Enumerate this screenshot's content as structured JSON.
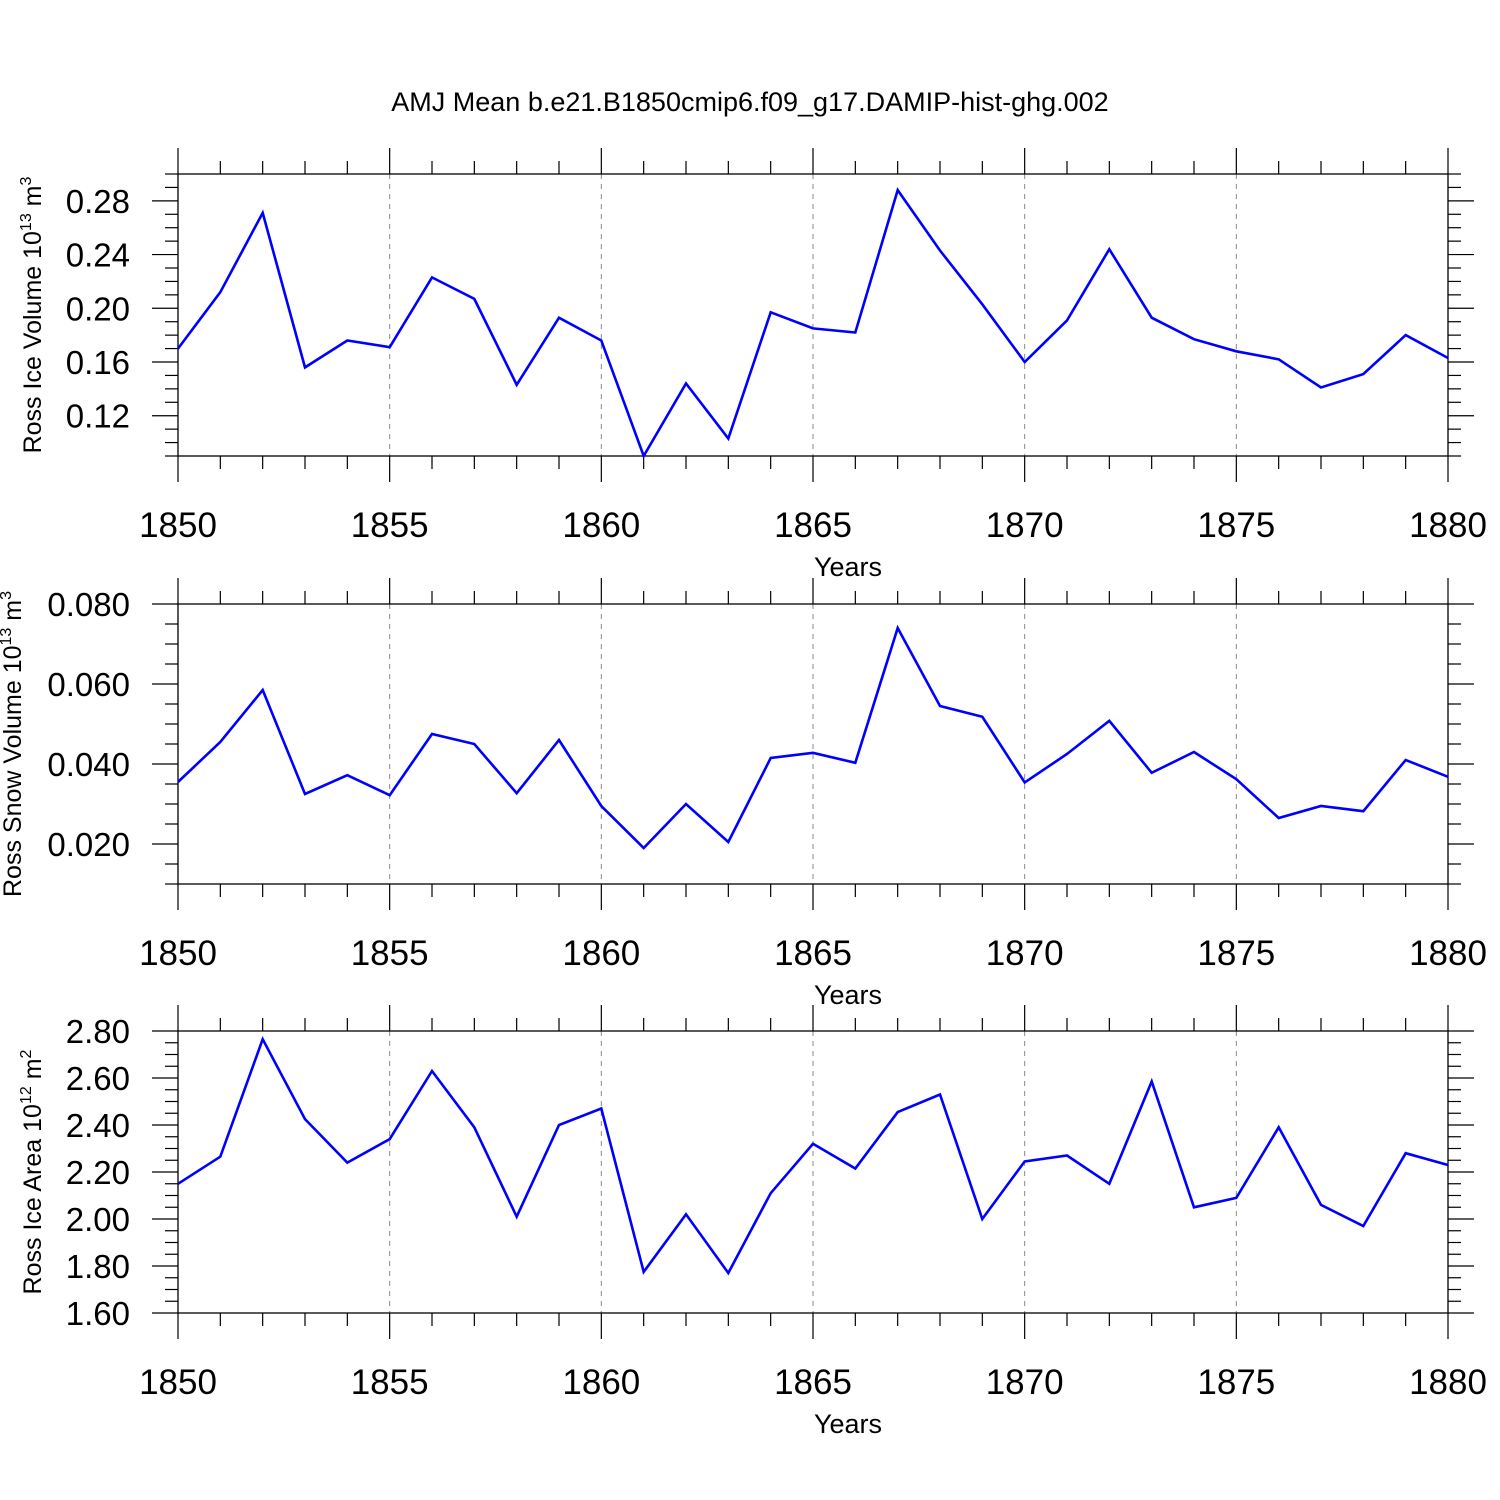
{
  "title": "AMJ Mean b.e21.B1850cmip6.f09_g17.DAMIP-hist-ghg.002",
  "colors": {
    "line": "#0000ff",
    "axis": "#000000",
    "grid": "#888888",
    "background": "#ffffff"
  },
  "chart_data": [
    {
      "type": "line",
      "ylabel": "Ross Ice Volume 10",
      "ylabel_sup": "13",
      "ylabel_unit": "m",
      "ylabel_unit_sup": "3",
      "xlabel": "Years",
      "xlim": [
        1850,
        1880
      ],
      "ylim": [
        0.09,
        0.3
      ],
      "x_ticks": [
        "1850",
        "1855",
        "1860",
        "1865",
        "1870",
        "1875",
        "1880"
      ],
      "y_ticks": [
        "0.12",
        "0.16",
        "0.20",
        "0.24",
        "0.28"
      ],
      "grid": "vertical dashed at major x ticks",
      "series": [
        {
          "x": [
            1850,
            1851,
            1852,
            1853,
            1854,
            1855,
            1856,
            1857,
            1858,
            1859,
            1860,
            1861,
            1862,
            1863,
            1864,
            1865,
            1866,
            1867,
            1868,
            1869,
            1870,
            1871,
            1872,
            1873,
            1874,
            1875,
            1876,
            1877,
            1878,
            1879,
            1880
          ],
          "values": [
            0.17,
            0.212,
            0.271,
            0.156,
            0.176,
            0.171,
            0.223,
            0.207,
            0.143,
            0.193,
            0.176,
            0.09,
            0.144,
            0.103,
            0.197,
            0.185,
            0.182,
            0.288,
            0.243,
            0.203,
            0.16,
            0.191,
            0.244,
            0.193,
            0.177,
            0.168,
            0.162,
            0.141,
            0.151,
            0.18,
            0.163
          ]
        }
      ]
    },
    {
      "type": "line",
      "ylabel": "Ross Snow Volume 10",
      "ylabel_sup": "13",
      "ylabel_unit": "m",
      "ylabel_unit_sup": "3",
      "xlabel": "Years",
      "xlim": [
        1850,
        1880
      ],
      "ylim": [
        0.01,
        0.08
      ],
      "x_ticks": [
        "1850",
        "1855",
        "1860",
        "1865",
        "1870",
        "1875",
        "1880"
      ],
      "y_ticks": [
        "0.020",
        "0.040",
        "0.060",
        "0.080"
      ],
      "grid": "vertical dashed at major x ticks",
      "series": [
        {
          "x": [
            1850,
            1851,
            1852,
            1853,
            1854,
            1855,
            1856,
            1857,
            1858,
            1859,
            1860,
            1861,
            1862,
            1863,
            1864,
            1865,
            1866,
            1867,
            1868,
            1869,
            1870,
            1871,
            1872,
            1873,
            1874,
            1875,
            1876,
            1877,
            1878,
            1879,
            1880
          ],
          "values": [
            0.0355,
            0.0455,
            0.0585,
            0.0325,
            0.0372,
            0.0322,
            0.0475,
            0.045,
            0.0327,
            0.046,
            0.0295,
            0.019,
            0.03,
            0.0205,
            0.0415,
            0.0428,
            0.0403,
            0.074,
            0.0545,
            0.0518,
            0.0354,
            0.0425,
            0.0508,
            0.0378,
            0.043,
            0.0362,
            0.0265,
            0.0295,
            0.0282,
            0.041,
            0.0368
          ]
        }
      ]
    },
    {
      "type": "line",
      "ylabel": "Ross Ice Area 10",
      "ylabel_sup": "12",
      "ylabel_unit": "m",
      "ylabel_unit_sup": "2",
      "xlabel": "Years",
      "xlim": [
        1850,
        1880
      ],
      "ylim": [
        1.6,
        2.8
      ],
      "x_ticks": [
        "1850",
        "1855",
        "1860",
        "1865",
        "1870",
        "1875",
        "1880"
      ],
      "y_ticks": [
        "1.60",
        "1.80",
        "2.00",
        "2.20",
        "2.40",
        "2.60",
        "2.80"
      ],
      "grid": "vertical dashed at major x ticks",
      "series": [
        {
          "x": [
            1850,
            1851,
            1852,
            1853,
            1854,
            1855,
            1856,
            1857,
            1858,
            1859,
            1860,
            1861,
            1862,
            1863,
            1864,
            1865,
            1866,
            1867,
            1868,
            1869,
            1870,
            1871,
            1872,
            1873,
            1874,
            1875,
            1876,
            1877,
            1878,
            1879,
            1880
          ],
          "values": [
            2.15,
            2.265,
            2.765,
            2.425,
            2.24,
            2.34,
            2.63,
            2.39,
            2.01,
            2.4,
            2.47,
            1.775,
            2.02,
            1.77,
            2.11,
            2.32,
            2.215,
            2.455,
            2.53,
            2.0,
            2.245,
            2.27,
            2.15,
            2.585,
            2.05,
            2.09,
            2.39,
            2.06,
            1.97,
            2.28,
            2.23
          ]
        }
      ]
    }
  ]
}
